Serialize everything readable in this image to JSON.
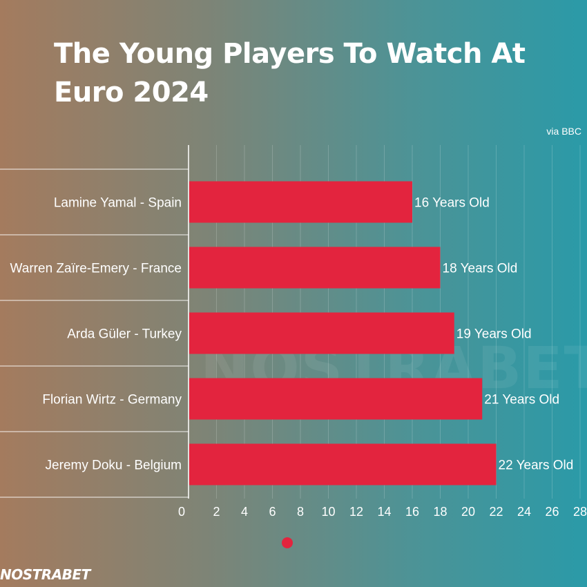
{
  "title": "The Young Players To Watch At Euro 2024",
  "source": "via BBC",
  "watermark": "NOSTRABET",
  "logo": "NOSTRABET",
  "colors": {
    "bar": "#e3243e",
    "grid": "#ffffff",
    "text": "#ffffff"
  },
  "chart_data": {
    "type": "bar",
    "orientation": "horizontal",
    "categories": [
      "Lamine Yamal - Spain",
      "Warren Zaïre-Emery - France",
      "Arda Güler - Turkey",
      "Florian Wirtz - Germany",
      "Jeremy Doku - Belgium"
    ],
    "values": [
      16,
      18,
      19,
      21,
      22
    ],
    "data_labels": [
      "16 Years Old",
      "18 Years Old",
      "19 Years Old",
      "21 Years Old",
      "22 Years Old"
    ],
    "xlim": [
      0,
      28
    ],
    "x_ticks": [
      0,
      2,
      4,
      6,
      8,
      10,
      12,
      14,
      16,
      18,
      20,
      22,
      24,
      26,
      28
    ],
    "grid": true,
    "legend": "bottom"
  }
}
